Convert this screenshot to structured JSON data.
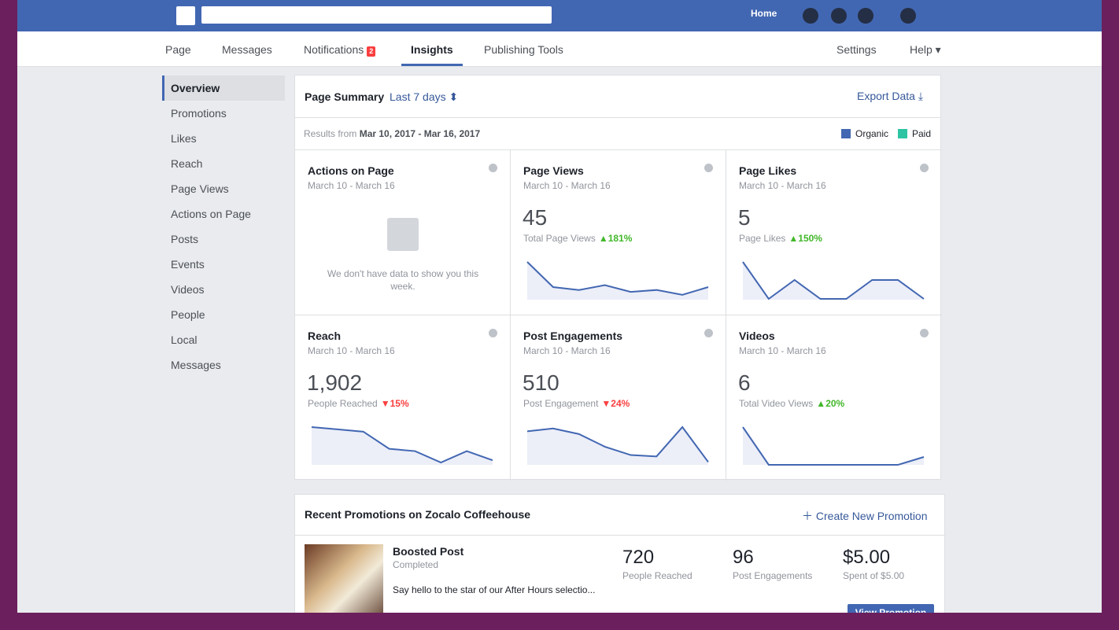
{
  "topbar": {
    "home": "Home"
  },
  "tabs": [
    {
      "label": "Page"
    },
    {
      "label": "Messages"
    },
    {
      "label": "Notifications",
      "badge": 2
    },
    {
      "label": "Insights",
      "active": true
    },
    {
      "label": "Publishing Tools"
    }
  ],
  "settings": "Settings",
  "help": "Help",
  "sidebar": [
    {
      "label": "Overview",
      "active": true
    },
    {
      "label": "Promotions"
    },
    {
      "label": "Likes"
    },
    {
      "label": "Reach"
    },
    {
      "label": "Page Views"
    },
    {
      "label": "Actions on Page"
    },
    {
      "label": "Posts"
    },
    {
      "label": "Events"
    },
    {
      "label": "Videos"
    },
    {
      "label": "People"
    },
    {
      "label": "Local"
    },
    {
      "label": "Messages"
    }
  ],
  "summary": {
    "title": "Page Summary",
    "range": "Last 7 days",
    "export": "Export Data",
    "results_prefix": "Results from",
    "results_range": "Mar 10, 2017 - Mar 16, 2017",
    "legend": [
      {
        "name": "Organic",
        "color": "#4267b2"
      },
      {
        "name": "Paid",
        "color": "#2cc4a3"
      }
    ]
  },
  "cards": [
    {
      "title": "Actions on Page",
      "dates": "March 10 - March 16",
      "empty": "We don't have data to show you this week."
    },
    {
      "title": "Page Views",
      "dates": "March 10 - March 16",
      "value": "45",
      "metric": "Total Page Views",
      "change": "181%",
      "direction": "up",
      "trend": [
        39,
        13,
        10,
        15,
        8,
        10,
        5,
        13
      ]
    },
    {
      "title": "Page Likes",
      "dates": "March 10 - March 16",
      "value": "5",
      "metric": "Page Likes",
      "change": "150%",
      "direction": "up",
      "trend": [
        48,
        1,
        25,
        1,
        1,
        25,
        25,
        1
      ]
    },
    {
      "title": "Reach",
      "dates": "March 10 - March 16",
      "value": "1,902",
      "metric": "People Reached",
      "change": "15%",
      "direction": "down",
      "trend": [
        33,
        31,
        29,
        14,
        12,
        2,
        12,
        4
      ]
    },
    {
      "title": "Post Engagements",
      "dates": "March 10 - March 16",
      "value": "510",
      "metric": "Post Engagement",
      "change": "24%",
      "direction": "down",
      "trend": [
        24,
        26,
        22,
        13,
        7,
        6,
        27,
        2
      ]
    },
    {
      "title": "Videos",
      "dates": "March 10 - March 16",
      "value": "6",
      "metric": "Total Video Views",
      "change": "20%",
      "direction": "up",
      "trend": [
        48,
        0,
        0,
        0,
        0,
        0,
        0,
        10
      ]
    }
  ],
  "promotions": {
    "title": "Recent Promotions on Zocalo Coffeehouse",
    "create": "Create New Promotion",
    "item": {
      "type": "Boosted Post",
      "status": "Completed",
      "text": "Say hello to the star of our After Hours selectio...",
      "stats": [
        {
          "value": "720",
          "label": "People Reached"
        },
        {
          "value": "96",
          "label": "Post Engagements"
        },
        {
          "value": "$5.00",
          "label": "Spent of $5.00"
        }
      ],
      "button": "View Promotion"
    }
  }
}
